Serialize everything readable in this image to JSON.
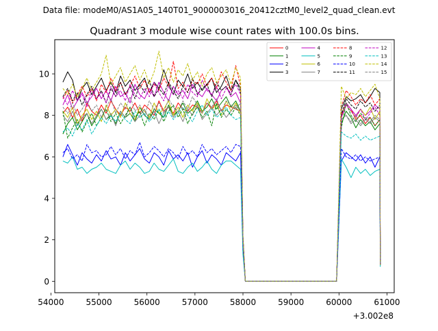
{
  "figure": {
    "suptitle": "Data file: modeM0/AS1A05_140T01_9000003016_20412cztM0_level2_quad_clean.evt"
  },
  "chart_data": {
    "type": "line",
    "title": "Quadrant 3 module wise count rates with 100.0s bins.",
    "xlabel": "",
    "ylabel": "",
    "x_offset_label": "+3.002e8",
    "xlim": [
      54080,
      61150
    ],
    "ylim": [
      -0.55,
      11.65
    ],
    "x_ticks": [
      54000,
      55000,
      56000,
      57000,
      58000,
      59000,
      60000,
      61000
    ],
    "x_tick_labels": [
      "54000",
      "55000",
      "56000",
      "57000",
      "58000",
      "59000",
      "60000",
      "61000"
    ],
    "y_ticks": [
      0,
      2,
      4,
      6,
      8,
      10
    ],
    "y_tick_labels": [
      "0",
      "2",
      "4",
      "6",
      "8",
      "10"
    ],
    "grid": false,
    "legend_position": "top-right",
    "bin_size_s": 100,
    "seg1_start": 54250,
    "seg1_end": 57950,
    "seg2_start": 60050,
    "seg2_end": 60850,
    "gap_start": 58050,
    "gap_end": 59950,
    "series": [
      {
        "name": "0",
        "color": "#ff0000",
        "dash": false,
        "seg1": [
          8.1,
          8.4,
          7.9,
          8.3,
          7.7,
          8.6,
          8.2,
          8.0,
          8.5,
          8.1,
          8.7,
          8.3,
          8.0,
          8.4,
          8.2,
          8.6,
          8.1,
          8.5,
          8.3,
          8.0,
          8.7,
          8.2,
          8.4,
          8.1,
          8.6,
          8.3,
          8.2,
          8.5,
          8.4,
          8.1,
          8.6,
          8.3,
          8.7,
          8.2,
          8.5,
          8.4,
          8.3,
          8.2
        ],
        "fall": 2.0,
        "seg2": [
          7.9,
          8.6,
          8.3,
          7.8,
          8.0,
          7.6,
          7.9,
          7.5,
          7.8
        ],
        "rise_end": 0.9
      },
      {
        "name": "1",
        "color": "#008000",
        "dash": false,
        "seg1": [
          7.1,
          7.6,
          7.9,
          7.3,
          7.7,
          8.1,
          7.5,
          7.9,
          8.3,
          7.8,
          8.0,
          7.6,
          8.2,
          7.9,
          8.1,
          7.7,
          8.4,
          8.0,
          7.8,
          8.3,
          8.1,
          7.9,
          8.5,
          8.0,
          8.2,
          8.6,
          8.1,
          8.3,
          8.7,
          8.2,
          8.4,
          8.8,
          8.3,
          8.6,
          8.9,
          8.4,
          8.7,
          8.2
        ],
        "fall": 1.9,
        "seg2": [
          7.6,
          8.2,
          7.9,
          7.4,
          7.8,
          7.5,
          7.7,
          7.3,
          7.6
        ],
        "rise_end": 0.8
      },
      {
        "name": "2",
        "color": "#0000ff",
        "dash": false,
        "seg1": [
          6.0,
          6.6,
          6.1,
          5.6,
          6.2,
          5.9,
          5.7,
          6.1,
          5.8,
          6.3,
          5.9,
          6.0,
          5.6,
          6.2,
          5.8,
          6.1,
          6.4,
          5.9,
          5.7,
          6.2,
          6.0,
          5.6,
          6.3,
          5.9,
          6.1,
          5.8,
          6.2,
          5.5,
          6.0,
          6.3,
          5.7,
          6.1,
          5.9,
          5.6,
          6.2,
          6.0,
          5.8,
          6.2
        ],
        "fall": 1.5,
        "seg2": [
          5.8,
          6.2,
          6.0,
          5.8,
          6.1,
          5.7,
          6.0,
          5.5,
          6.0
        ],
        "rise_end": 0.8
      },
      {
        "name": "3",
        "color": "#000000",
        "dash": false,
        "seg1": [
          9.6,
          10.1,
          9.7,
          8.7,
          9.3,
          9.6,
          9.0,
          9.4,
          9.8,
          9.2,
          9.6,
          9.1,
          9.9,
          9.4,
          9.7,
          9.2,
          9.5,
          9.8,
          9.1,
          9.6,
          9.3,
          10.2,
          9.5,
          9.0,
          9.7,
          9.4,
          10.0,
          9.3,
          9.6,
          9.2,
          9.5,
          9.8,
          9.1,
          9.4,
          9.9,
          9.2,
          9.7,
          9.3
        ],
        "fall": 2.2,
        "seg2": [
          8.3,
          8.9,
          8.7,
          8.8,
          9.0,
          8.6,
          8.9,
          9.3,
          9.1
        ],
        "rise_end": 0.8
      },
      {
        "name": "4",
        "color": "#bf00bf",
        "dash": false,
        "seg1": [
          8.5,
          9.0,
          8.3,
          8.7,
          9.1,
          8.6,
          8.9,
          9.3,
          8.8,
          9.2,
          8.7,
          9.4,
          8.9,
          9.1,
          8.6,
          9.5,
          9.0,
          8.8,
          9.3,
          8.9,
          9.6,
          9.1,
          8.7,
          9.4,
          9.0,
          9.2,
          8.8,
          9.5,
          9.1,
          8.9,
          9.3,
          9.0,
          8.7,
          9.2,
          9.4,
          8.9,
          9.1,
          8.6
        ],
        "fall": 2.1,
        "seg2": [
          8.0,
          8.6,
          8.3,
          8.0,
          8.3,
          8.0,
          8.2,
          8.5,
          8.3
        ],
        "rise_end": 0.8
      },
      {
        "name": "5",
        "color": "#00bfbf",
        "dash": false,
        "seg1": [
          5.8,
          5.7,
          6.0,
          5.4,
          5.5,
          5.2,
          5.4,
          5.5,
          5.7,
          5.4,
          5.3,
          5.2,
          5.6,
          5.8,
          5.4,
          5.7,
          5.5,
          5.2,
          5.3,
          5.7,
          5.4,
          5.3,
          5.6,
          5.9,
          5.3,
          5.2,
          5.5,
          5.7,
          5.3,
          5.5,
          5.8,
          5.4,
          5.2,
          5.6,
          5.8,
          5.8,
          5.6,
          5.4
        ],
        "fall": 1.3,
        "seg2": [
          5.9,
          5.5,
          5.0,
          5.5,
          5.2,
          5.4,
          5.1,
          5.3,
          5.4
        ],
        "rise_end": 0.7
      },
      {
        "name": "6",
        "color": "#bfbf00",
        "dash": false,
        "seg1": [
          8.2,
          7.9,
          8.4,
          7.6,
          8.0,
          8.3,
          7.8,
          8.2,
          7.7,
          8.5,
          8.0,
          8.3,
          7.9,
          8.6,
          8.1,
          7.8,
          8.4,
          8.2,
          7.9,
          8.6,
          8.1,
          8.3,
          8.7,
          8.0,
          8.4,
          7.9,
          8.5,
          8.2,
          8.6,
          8.1,
          8.8,
          8.3,
          8.5,
          8.0,
          8.7,
          8.2,
          8.6,
          8.1
        ],
        "fall": 1.9,
        "seg2": [
          8.1,
          8.5,
          8.2,
          7.9,
          8.3,
          8.0,
          8.4,
          7.8,
          8.2
        ],
        "rise_end": 0.8
      },
      {
        "name": "7",
        "color": "#808080",
        "dash": false,
        "seg1": [
          8.0,
          7.7,
          8.2,
          7.5,
          7.9,
          8.1,
          7.6,
          8.0,
          8.3,
          7.8,
          8.1,
          7.5,
          8.2,
          7.9,
          8.4,
          7.7,
          8.0,
          8.3,
          7.8,
          8.2,
          7.6,
          8.1,
          8.4,
          7.9,
          8.2,
          7.7,
          8.3,
          8.0,
          8.5,
          7.8,
          8.1,
          8.4,
          8.0,
          8.3,
          7.9,
          8.2,
          8.5,
          8.2
        ],
        "fall": 1.9,
        "seg2": [
          7.8,
          8.0,
          7.6,
          7.8,
          7.5,
          7.8,
          7.6,
          7.9,
          7.7
        ],
        "rise_end": 0.8
      },
      {
        "name": "8",
        "color": "#ff0000",
        "dash": true,
        "seg1": [
          8.8,
          9.2,
          8.6,
          9.0,
          9.4,
          8.9,
          9.3,
          8.7,
          9.5,
          9.1,
          9.8,
          9.2,
          9.6,
          9.0,
          9.4,
          9.9,
          9.3,
          9.7,
          9.1,
          9.5,
          9.2,
          9.8,
          9.4,
          10.6,
          9.3,
          9.6,
          9.1,
          9.7,
          9.5,
          10.0,
          9.4,
          9.8,
          9.3,
          10.1,
          9.6,
          9.2,
          10.4,
          9.4
        ],
        "fall": 2.1,
        "seg2": [
          8.4,
          9.2,
          8.9,
          8.5,
          8.8,
          8.6,
          9.0,
          8.5,
          8.8
        ],
        "rise_end": 0.8
      },
      {
        "name": "9",
        "color": "#008000",
        "dash": true,
        "seg1": [
          8.2,
          6.9,
          7.4,
          7.8,
          7.2,
          7.7,
          8.1,
          7.5,
          7.9,
          8.3,
          7.7,
          8.1,
          7.6,
          8.0,
          8.4,
          7.9,
          8.2,
          7.5,
          8.1,
          7.8,
          8.3,
          7.7,
          8.2,
          8.5,
          7.9,
          8.3,
          7.6,
          8.1,
          8.4,
          7.9,
          8.2,
          7.5,
          8.6,
          7.9,
          8.3,
          8.0,
          8.4,
          8.0
        ],
        "fall": 1.9,
        "seg2": [
          7.4,
          8.6,
          8.0,
          7.7,
          8.1,
          7.8,
          7.9,
          7.5,
          7.8
        ],
        "rise_end": 0.8
      },
      {
        "name": "10",
        "color": "#0000ff",
        "dash": true,
        "seg1": [
          6.2,
          6.4,
          5.9,
          6.1,
          5.8,
          6.6,
          6.2,
          6.3,
          6.0,
          6.1,
          6.5,
          6.1,
          6.4,
          5.9,
          6.3,
          6.1,
          6.7,
          6.0,
          6.2,
          6.5,
          6.3,
          6.0,
          6.4,
          6.2,
          5.9,
          6.5,
          6.1,
          6.3,
          6.0,
          6.6,
          6.2,
          6.4,
          6.1,
          6.3,
          6.5,
          6.2,
          6.6,
          6.5
        ],
        "fall": 1.6,
        "seg2": [
          6.4,
          6.0,
          5.9,
          6.1,
          5.8,
          6.0,
          5.8,
          5.9,
          6.0
        ],
        "rise_end": 0.8
      },
      {
        "name": "11",
        "color": "#000000",
        "dash": true,
        "seg1": [
          8.9,
          9.3,
          8.7,
          9.1,
          8.5,
          9.0,
          9.4,
          8.8,
          9.2,
          8.6,
          9.3,
          8.9,
          9.6,
          9.0,
          9.4,
          8.8,
          9.5,
          9.1,
          9.7,
          8.9,
          9.3,
          9.0,
          9.6,
          9.2,
          8.8,
          9.4,
          9.1,
          9.8,
          9.0,
          9.3,
          9.5,
          8.9,
          9.6,
          9.2,
          9.4,
          9.0,
          9.7,
          9.1
        ],
        "fall": 2.1,
        "seg2": [
          8.0,
          8.8,
          8.5,
          8.3,
          8.7,
          8.4,
          8.6,
          8.2,
          8.5
        ],
        "rise_end": 0.8
      },
      {
        "name": "12",
        "color": "#bf00bf",
        "dash": true,
        "seg1": [
          8.9,
          8.5,
          9.2,
          8.7,
          9.0,
          8.4,
          9.3,
          8.8,
          9.1,
          8.6,
          9.4,
          8.9,
          9.2,
          8.7,
          9.5,
          9.0,
          8.8,
          9.3,
          8.9,
          9.6,
          9.1,
          8.7,
          9.4,
          9.0,
          9.2,
          8.8,
          9.5,
          9.1,
          8.9,
          9.7,
          9.2,
          9.0,
          9.4,
          8.8,
          9.3,
          9.1,
          9.5,
          9.0
        ],
        "fall": 2.1,
        "seg2": [
          7.9,
          8.5,
          8.2,
          7.9,
          8.3,
          7.8,
          8.1,
          8.4,
          8.0
        ],
        "rise_end": 0.8
      },
      {
        "name": "13",
        "color": "#00bfbf",
        "dash": true,
        "seg1": [
          7.2,
          7.4,
          7.0,
          7.6,
          7.3,
          7.8,
          7.1,
          7.5,
          7.9,
          7.6,
          8.0,
          7.7,
          8.1,
          7.8,
          7.6,
          8.2,
          7.9,
          8.1,
          7.7,
          8.0,
          8.3,
          7.9,
          8.2,
          7.8,
          8.1,
          8.4,
          8.0,
          7.7,
          8.2,
          8.5,
          8.0,
          8.3,
          7.9,
          8.1,
          8.4,
          8.0,
          7.8,
          7.9
        ],
        "fall": 1.8,
        "seg2": [
          7.2,
          7.0,
          6.9,
          7.1,
          6.8,
          7.0,
          6.8,
          6.9,
          7.0
        ],
        "rise_end": 0.8
      },
      {
        "name": "14",
        "color": "#bfbf00",
        "dash": true,
        "seg1": [
          9.3,
          9.0,
          9.5,
          8.9,
          9.3,
          9.8,
          9.2,
          9.6,
          10.0,
          10.9,
          9.5,
          9.9,
          10.3,
          9.6,
          10.0,
          10.4,
          9.7,
          10.2,
          9.5,
          10.1,
          11.1,
          9.8,
          10.3,
          9.6,
          10.2,
          9.9,
          10.5,
          9.7,
          10.1,
          9.4,
          10.0,
          10.3,
          9.6,
          9.9,
          10.2,
          9.5,
          10.3,
          9.8
        ],
        "fall": 2.2,
        "seg2": [
          9.4,
          8.8,
          9.1,
          9.0,
          9.3,
          8.9,
          9.2,
          9.5,
          8.8
        ],
        "rise_end": 0.8
      },
      {
        "name": "15",
        "color": "#808080",
        "dash": true,
        "seg1": [
          8.4,
          8.1,
          8.6,
          8.0,
          8.3,
          8.7,
          8.2,
          8.5,
          7.9,
          8.4,
          8.8,
          8.1,
          8.6,
          8.3,
          8.9,
          8.2,
          8.5,
          8.0,
          8.7,
          8.3,
          8.6,
          8.1,
          8.8,
          8.4,
          8.2,
          8.7,
          8.3,
          8.9,
          8.5,
          8.1,
          8.6,
          8.4,
          8.8,
          8.2,
          8.7,
          8.5,
          8.3,
          8.6
        ],
        "fall": 1.9,
        "seg2": [
          8.5,
          8.0,
          7.7,
          8.0,
          7.6,
          7.9,
          7.7,
          8.0,
          7.8
        ],
        "rise_end": 0.8
      }
    ]
  }
}
